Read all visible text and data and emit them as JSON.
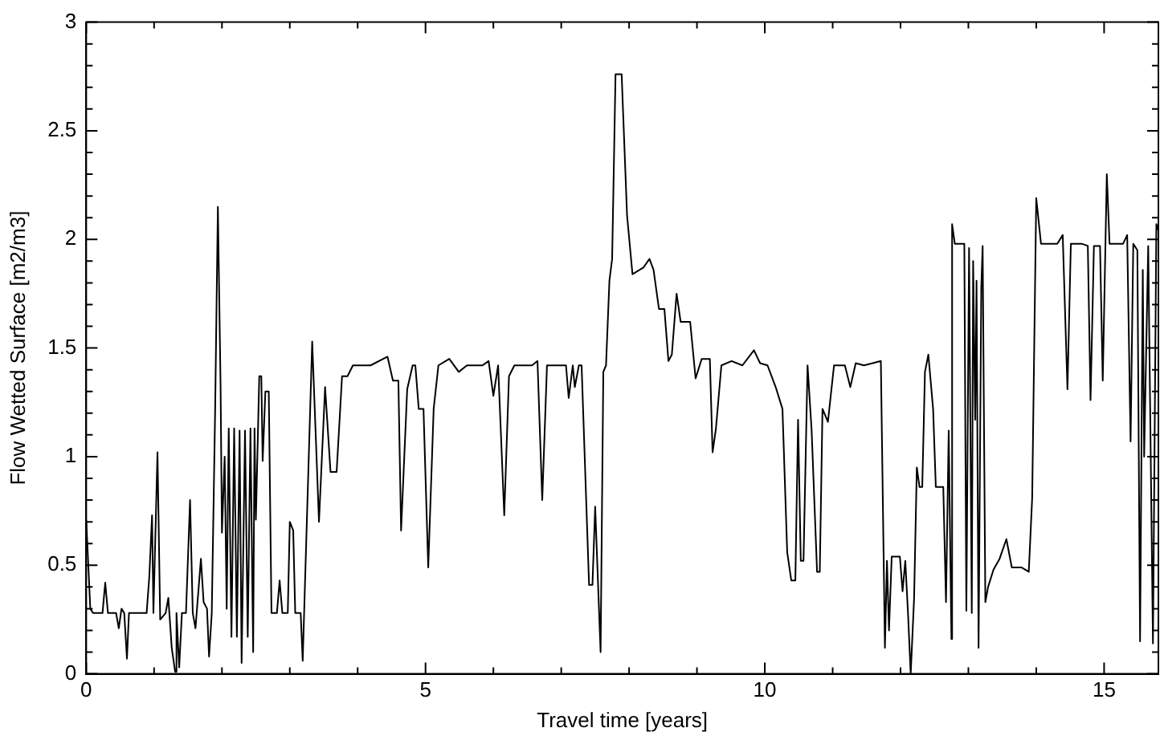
{
  "chart_data": {
    "type": "line",
    "xlabel": "Travel time [years]",
    "ylabel": "Flow Wetted Surface [m2/m3]",
    "xlim": [
      0,
      15.8
    ],
    "ylim": [
      0,
      3
    ],
    "grid": false,
    "legend": false,
    "marker": "none",
    "line_style": "solid",
    "xticks": [
      0,
      {
        "value": 1,
        "label": null
      },
      {
        "value": 2,
        "label": null
      },
      {
        "value": 3,
        "label": null
      },
      {
        "value": 4,
        "label": null
      },
      5,
      {
        "value": 6,
        "label": null
      },
      {
        "value": 7,
        "label": null
      },
      {
        "value": 8,
        "label": null
      },
      {
        "value": 9,
        "label": null
      },
      10,
      {
        "value": 11,
        "label": null
      },
      {
        "value": 12,
        "label": null
      },
      {
        "value": 13,
        "label": null
      },
      {
        "value": 14,
        "label": null
      },
      15
    ],
    "yticks": [
      0,
      {
        "value": 0.1,
        "label": null
      },
      {
        "value": 0.2,
        "label": null
      },
      {
        "value": 0.3,
        "label": null
      },
      {
        "value": 0.4,
        "label": null
      },
      0.5,
      {
        "value": 0.6,
        "label": null
      },
      {
        "value": 0.7,
        "label": null
      },
      {
        "value": 0.8,
        "label": null
      },
      {
        "value": 0.9,
        "label": null
      },
      1,
      {
        "value": 1.1,
        "label": null
      },
      {
        "value": 1.2,
        "label": null
      },
      {
        "value": 1.3,
        "label": null
      },
      {
        "value": 1.4,
        "label": null
      },
      1.5,
      {
        "value": 1.6,
        "label": null
      },
      {
        "value": 1.7,
        "label": null
      },
      {
        "value": 1.8,
        "label": null
      },
      {
        "value": 1.9,
        "label": null
      },
      2,
      {
        "value": 2.1,
        "label": null
      },
      {
        "value": 2.2,
        "label": null
      },
      {
        "value": 2.3,
        "label": null
      },
      {
        "value": 2.4,
        "label": null
      },
      2.5,
      {
        "value": 2.6,
        "label": null
      },
      {
        "value": 2.7,
        "label": null
      },
      {
        "value": 2.8,
        "label": null
      },
      {
        "value": 2.9,
        "label": null
      },
      3
    ],
    "series": [
      {
        "color": "#000000",
        "x": [
          0,
          0.06,
          0.1,
          0.24,
          0.28,
          0.32,
          0.44,
          0.48,
          0.52,
          0.56,
          0.6,
          0.63,
          0.89,
          0.93,
          0.97,
          0.99,
          1.05,
          1.09,
          1.17,
          1.21,
          1.26,
          1.31,
          1.33,
          1.37,
          1.41,
          1.47,
          1.53,
          1.57,
          1.61,
          1.69,
          1.73,
          1.78,
          1.81,
          1.85,
          1.9,
          1.94,
          1.98,
          2.0,
          2.04,
          2.07,
          2.1,
          2.14,
          2.18,
          2.22,
          2.26,
          2.29,
          2.34,
          2.38,
          2.42,
          2.46,
          2.48,
          2.5,
          2.55,
          2.58,
          2.6,
          2.64,
          2.69,
          2.73,
          2.81,
          2.85,
          2.89,
          2.97,
          3.0,
          3.05,
          3.08,
          3.16,
          3.19,
          3.33,
          3.43,
          3.52,
          3.6,
          3.69,
          3.77,
          3.85,
          3.93,
          4.19,
          4.44,
          4.52,
          4.6,
          4.64,
          4.73,
          4.81,
          4.85,
          4.9,
          4.97,
          5.04,
          5.12,
          5.19,
          5.35,
          5.49,
          5.61,
          5.84,
          5.93,
          6.0,
          6.07,
          6.16,
          6.23,
          6.31,
          6.57,
          6.65,
          6.72,
          6.79,
          7.07,
          7.11,
          7.17,
          7.2,
          7.26,
          7.3,
          7.41,
          7.46,
          7.5,
          7.58,
          7.62,
          7.66,
          7.71,
          7.75,
          7.8,
          7.89,
          7.97,
          8.05,
          8.21,
          8.3,
          8.36,
          8.44,
          8.52,
          8.58,
          8.63,
          8.7,
          8.76,
          8.9,
          8.98,
          9.07,
          9.19,
          9.23,
          9.28,
          9.36,
          9.51,
          9.67,
          9.84,
          9.93,
          10.04,
          10.16,
          10.26,
          10.33,
          10.39,
          10.45,
          10.49,
          10.53,
          10.57,
          10.63,
          10.69,
          10.77,
          10.81,
          10.85,
          10.93,
          11.02,
          11.18,
          11.26,
          11.34,
          11.46,
          11.59,
          11.71,
          11.75,
          11.77,
          11.8,
          11.83,
          11.87,
          11.99,
          12.03,
          12.07,
          12.11,
          12.15,
          12.2,
          12.24,
          12.28,
          12.32,
          12.36,
          12.41,
          12.48,
          12.52,
          12.63,
          12.67,
          12.71,
          12.75,
          12.76,
          12.8,
          12.94,
          12.97,
          13.01,
          13.05,
          13.07,
          13.1,
          13.12,
          13.15,
          13.19,
          13.21,
          13.25,
          13.29,
          13.37,
          13.46,
          13.56,
          13.64,
          13.78,
          13.89,
          13.94,
          14.0,
          14.07,
          14.31,
          14.39,
          14.46,
          14.51,
          14.67,
          14.76,
          14.8,
          14.85,
          14.94,
          14.98,
          15.04,
          15.08,
          15.28,
          15.34,
          15.39,
          15.43,
          15.49,
          15.53,
          15.57,
          15.59,
          15.65,
          15.72,
          15.77,
          15.8
        ],
        "values": [
          0.71,
          0.3,
          0.28,
          0.28,
          0.42,
          0.28,
          0.28,
          0.21,
          0.3,
          0.28,
          0.07,
          0.28,
          0.28,
          0.45,
          0.73,
          0.28,
          1.02,
          0.25,
          0.28,
          0.35,
          0.12,
          0.01,
          0.28,
          0.03,
          0.28,
          0.28,
          0.8,
          0.28,
          0.21,
          0.53,
          0.33,
          0.3,
          0.08,
          0.28,
          1.22,
          2.15,
          1.32,
          0.65,
          1.0,
          0.3,
          1.13,
          0.17,
          1.13,
          0.17,
          1.12,
          0.05,
          1.12,
          0.17,
          1.13,
          0.1,
          1.13,
          0.71,
          1.37,
          1.37,
          0.98,
          1.3,
          1.3,
          0.28,
          0.28,
          0.43,
          0.28,
          0.28,
          0.7,
          0.66,
          0.28,
          0.28,
          0.06,
          1.53,
          0.7,
          1.32,
          0.93,
          0.93,
          1.37,
          1.37,
          1.42,
          1.42,
          1.46,
          1.35,
          1.35,
          0.66,
          1.31,
          1.42,
          1.42,
          1.22,
          1.22,
          0.49,
          1.22,
          1.42,
          1.45,
          1.39,
          1.42,
          1.42,
          1.44,
          1.28,
          1.42,
          0.73,
          1.37,
          1.42,
          1.42,
          1.44,
          0.8,
          1.42,
          1.42,
          1.27,
          1.42,
          1.32,
          1.42,
          1.42,
          0.41,
          0.41,
          0.77,
          0.1,
          1.39,
          1.42,
          1.81,
          1.91,
          2.76,
          2.76,
          2.11,
          1.84,
          1.87,
          1.91,
          1.86,
          1.68,
          1.68,
          1.44,
          1.47,
          1.75,
          1.62,
          1.62,
          1.36,
          1.45,
          1.45,
          1.02,
          1.13,
          1.42,
          1.44,
          1.42,
          1.49,
          1.43,
          1.42,
          1.32,
          1.22,
          0.56,
          0.43,
          0.43,
          1.17,
          0.52,
          0.52,
          1.42,
          1.12,
          0.47,
          0.47,
          1.22,
          1.16,
          1.42,
          1.42,
          1.32,
          1.43,
          1.42,
          1.43,
          1.44,
          0.56,
          0.12,
          0.52,
          0.2,
          0.54,
          0.54,
          0.38,
          0.52,
          0.28,
          0.0,
          0.35,
          0.95,
          0.86,
          0.86,
          1.39,
          1.47,
          1.22,
          0.86,
          0.86,
          0.33,
          1.12,
          0.16,
          2.07,
          1.98,
          1.98,
          0.29,
          1.96,
          0.28,
          1.9,
          1.17,
          1.81,
          0.12,
          1.78,
          1.97,
          0.33,
          0.4,
          0.48,
          0.53,
          0.62,
          0.49,
          0.49,
          0.47,
          0.81,
          2.19,
          1.98,
          1.98,
          2.02,
          1.31,
          1.98,
          1.98,
          1.97,
          1.26,
          1.97,
          1.97,
          1.35,
          2.3,
          1.98,
          1.98,
          2.02,
          1.07,
          1.98,
          1.95,
          0.15,
          1.86,
          1.0,
          1.97,
          0.14,
          2.07,
          2.04
        ]
      }
    ]
  }
}
